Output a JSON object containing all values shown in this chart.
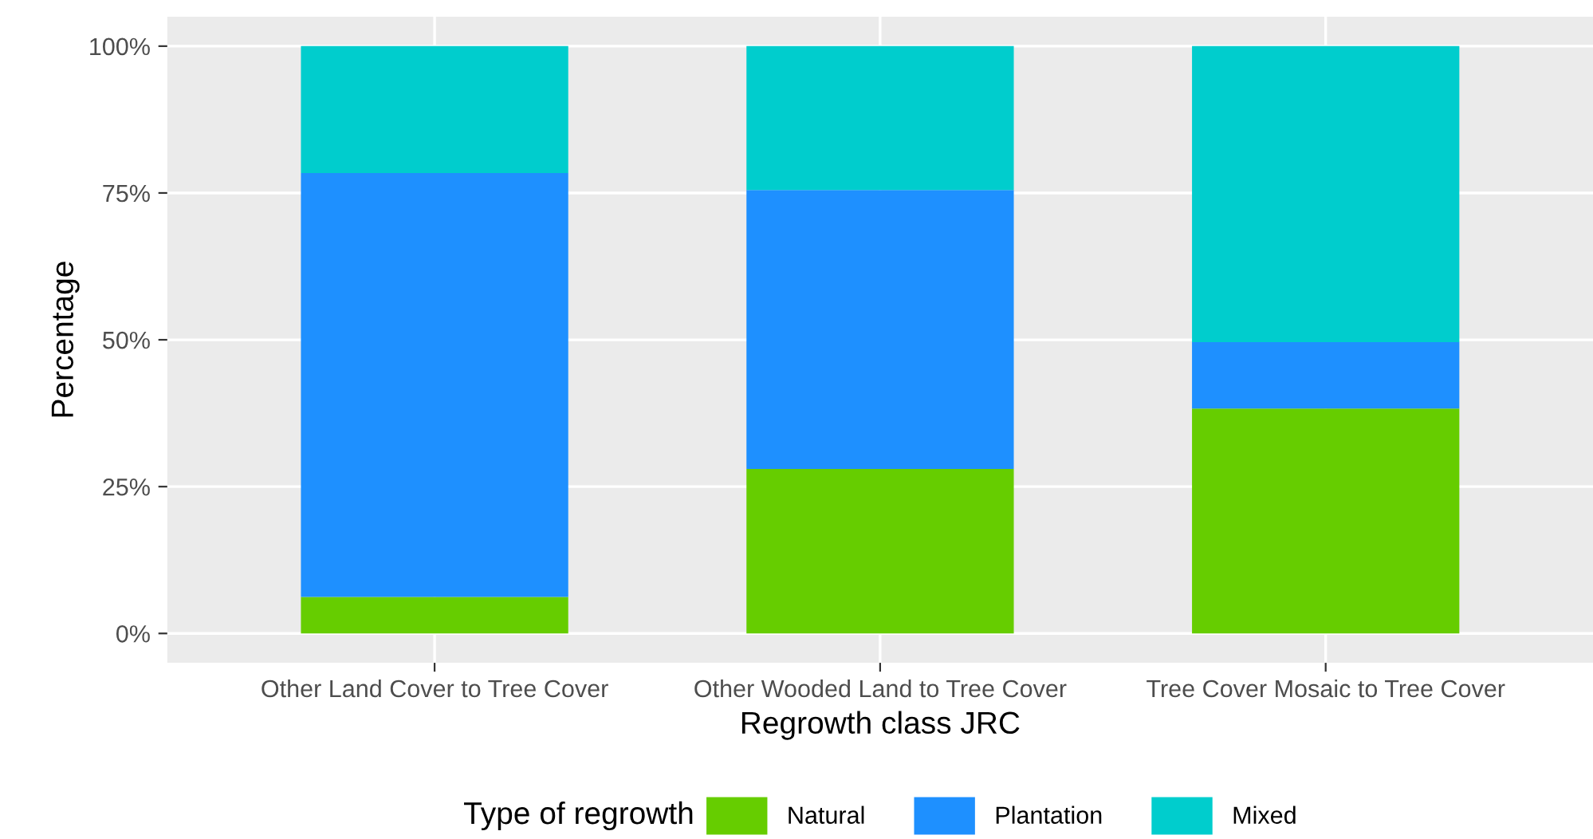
{
  "chart_data": {
    "type": "bar",
    "stacked": true,
    "xlabel": "Regrowth class JRC",
    "ylabel": "Percentage",
    "legend_title": "Type of regrowth",
    "legend": "bottom",
    "grid": true,
    "categories": [
      "Other Land Cover to Tree Cover",
      "Other Wooded Land to Tree Cover",
      "Tree Cover Mosaic to Tree Cover"
    ],
    "series": [
      {
        "name": "Natural",
        "color": "#66cd00",
        "values": [
          6.2,
          28.0,
          38.3
        ]
      },
      {
        "name": "Plantation",
        "color": "#1e90ff",
        "values": [
          72.2,
          47.5,
          11.3
        ]
      },
      {
        "name": "Mixed",
        "color": "#00cdcd",
        "values": [
          21.6,
          24.5,
          50.4
        ]
      }
    ],
    "ylim": [
      -5,
      105
    ],
    "yticks": [
      {
        "value": 0,
        "label": "0%"
      },
      {
        "value": 25,
        "label": "25%"
      },
      {
        "value": 50,
        "label": "50%"
      },
      {
        "value": 75,
        "label": "75%"
      },
      {
        "value": 100,
        "label": "100%"
      }
    ]
  }
}
